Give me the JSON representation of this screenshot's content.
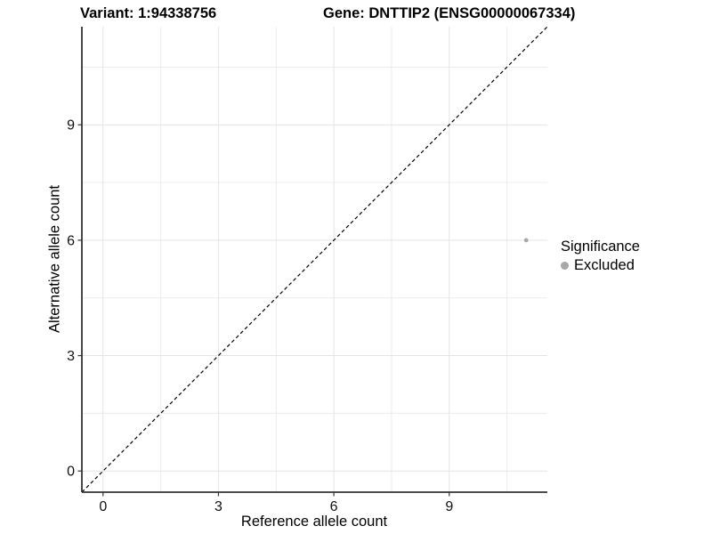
{
  "title": {
    "variant_label": "Variant: 1:94338756",
    "gene_label": "Gene: DNTTIP2 (ENSG00000067334)"
  },
  "chart_data": {
    "type": "scatter",
    "xlabel": "Reference allele count",
    "ylabel": "Alternative allele count",
    "xlim": [
      -0.55,
      11.55
    ],
    "ylim": [
      -0.55,
      11.55
    ],
    "x_major_ticks": [
      0,
      3,
      6,
      9
    ],
    "y_major_ticks": [
      0,
      3,
      6,
      9
    ],
    "x_minor_ticks": [
      1.5,
      4.5,
      7.5,
      10.5
    ],
    "y_minor_ticks": [
      1.5,
      4.5,
      7.5,
      10.5
    ],
    "grid": true,
    "identity_line": {
      "type": "dashed",
      "slope": 1,
      "intercept": 0,
      "color": "#000000"
    },
    "series": [
      {
        "name": "Excluded",
        "color": "#a8a8a8",
        "points": [
          {
            "x": 11,
            "y": 6
          }
        ]
      }
    ],
    "legend": {
      "position": "right",
      "title": "Significance",
      "items": [
        {
          "label": "Excluded",
          "color": "#a8a8a8"
        }
      ]
    },
    "colors": {
      "grid_major": "#e4e4e4",
      "grid_minor": "#ececec",
      "axis_line": "#333333",
      "tick_label": "#111111",
      "background": "#ffffff"
    }
  }
}
